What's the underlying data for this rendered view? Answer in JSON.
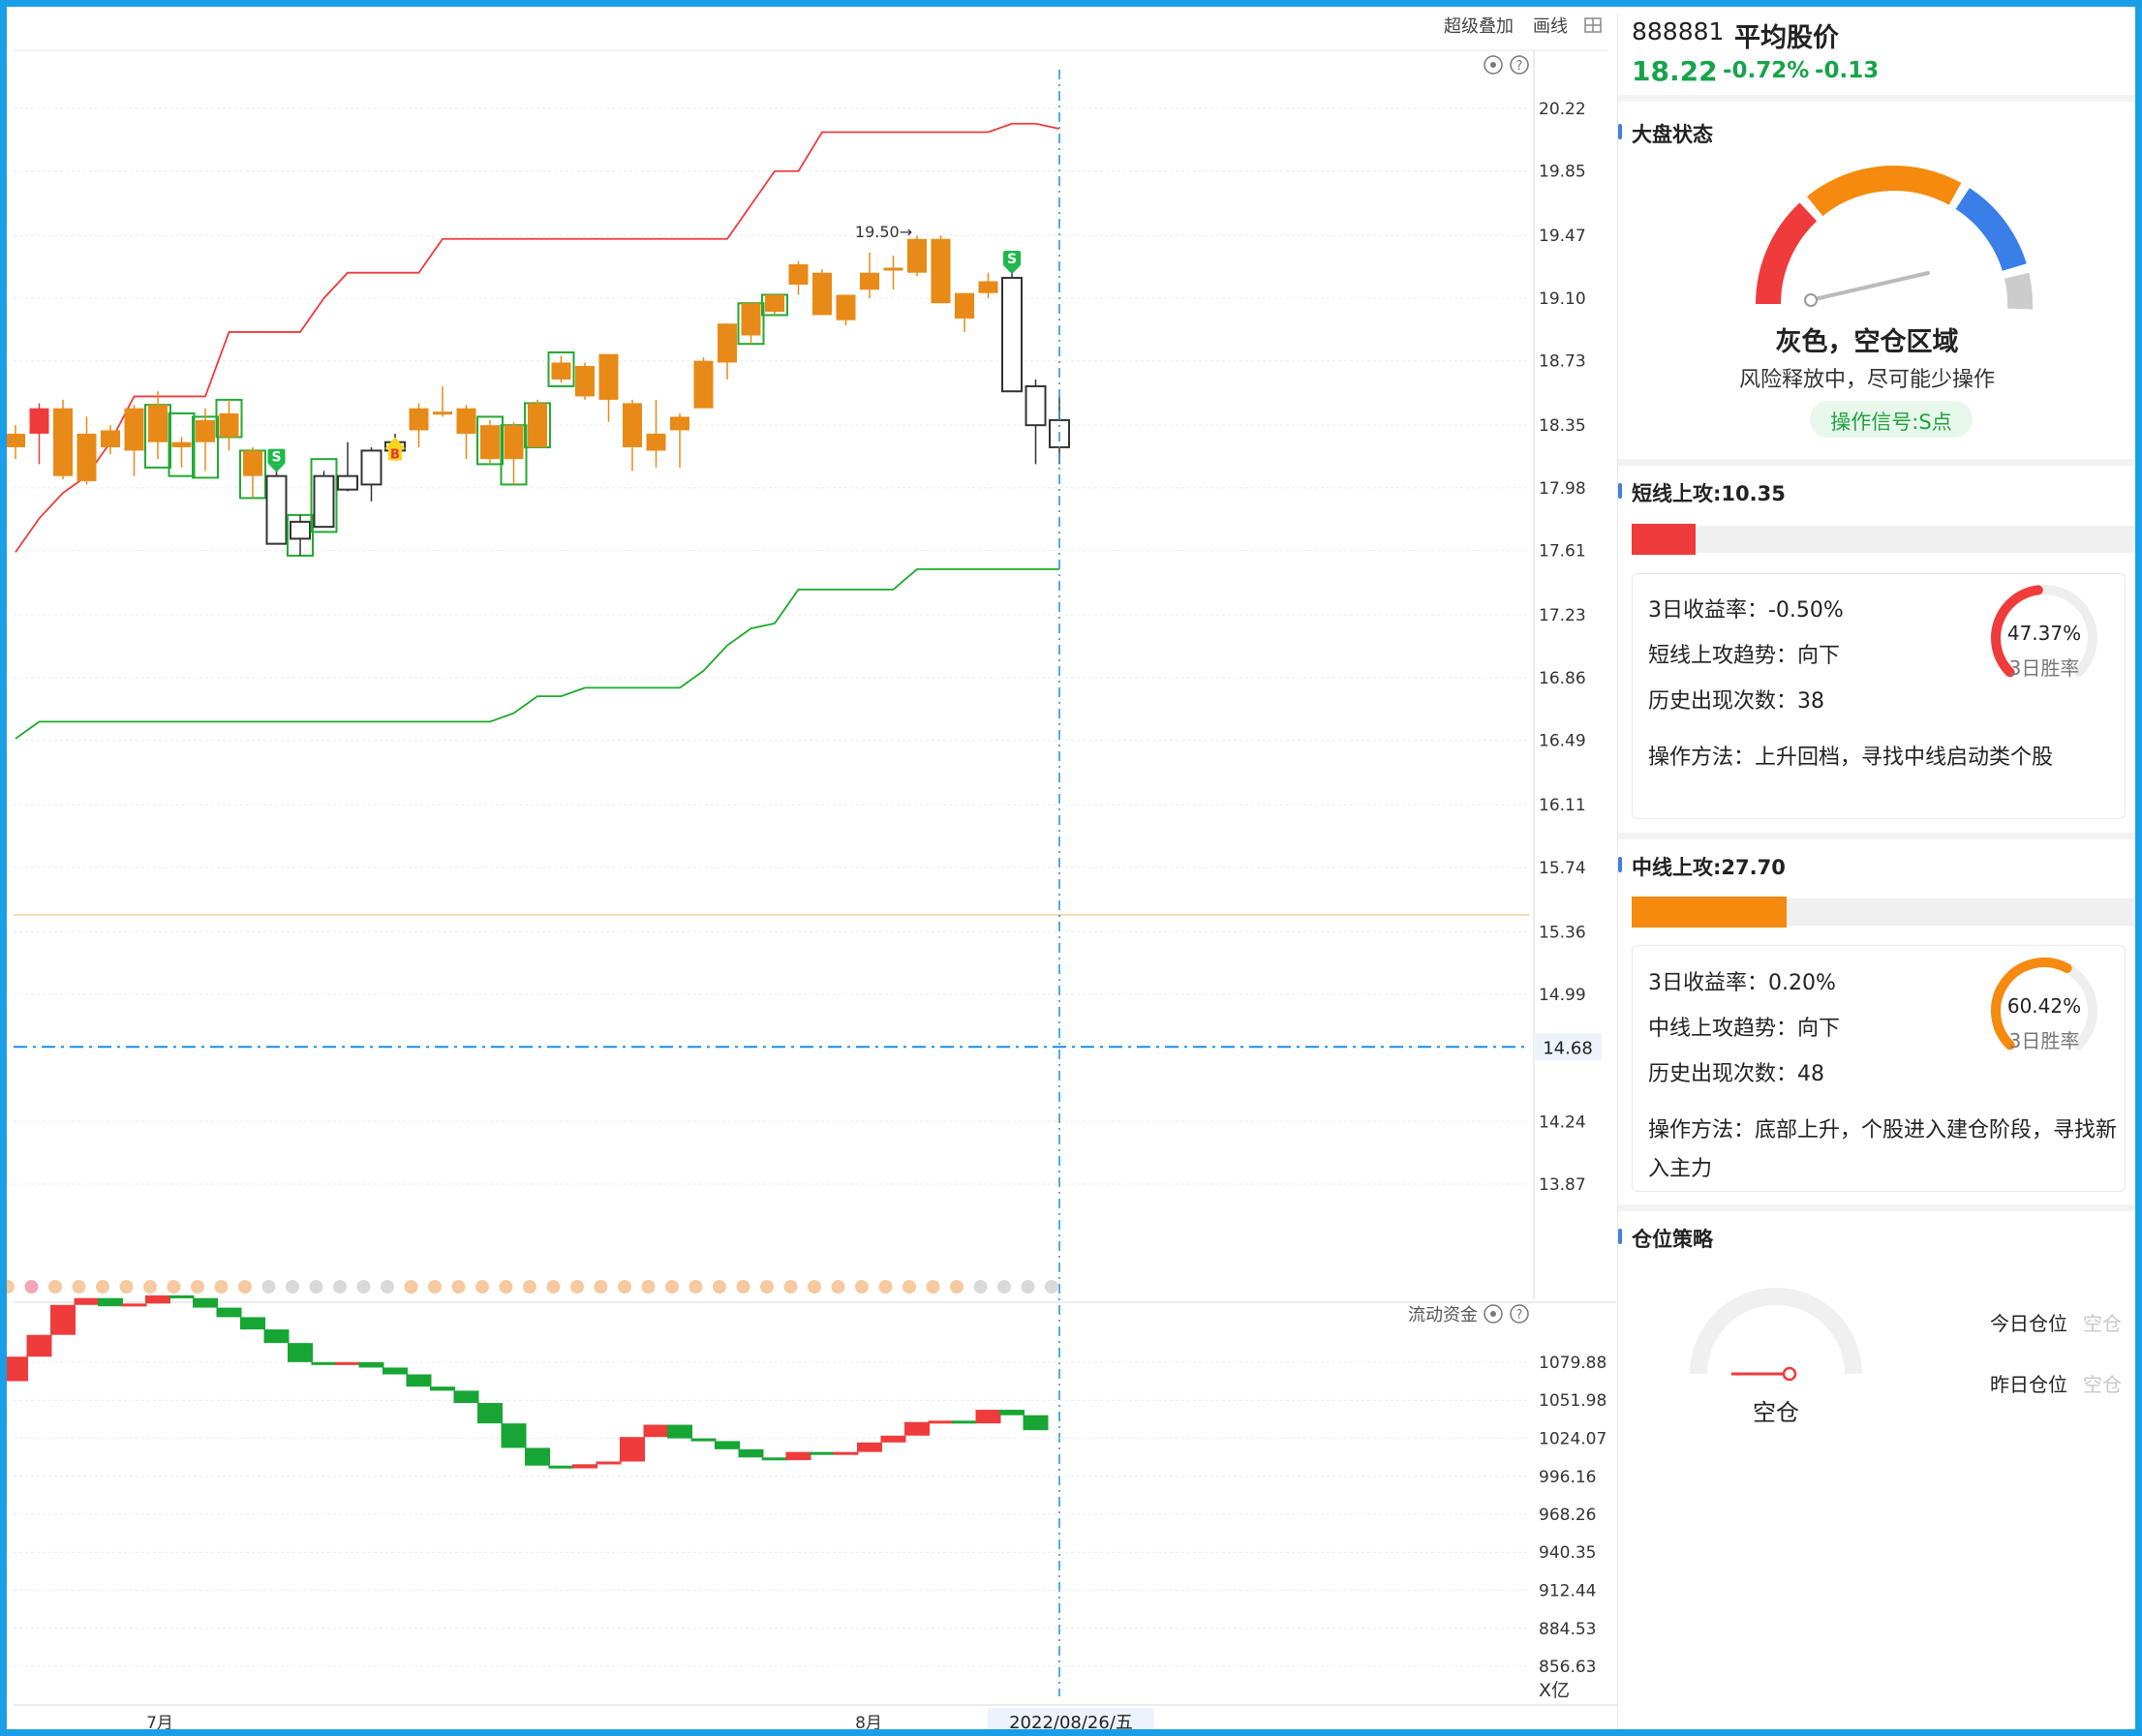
{
  "toolbar": {
    "overlay": "超级叠加",
    "draw": "画线",
    "grid_icon": "grid-icon"
  },
  "icons": {
    "settings": "settings-icon",
    "help": "help-icon"
  },
  "stock": {
    "code": "888881",
    "name": "平均股价",
    "price": "18.22",
    "pct": "-0.72%",
    "chg": "-0.13"
  },
  "market": {
    "title": "大盘状态",
    "state": "灰色，空仓区域",
    "desc": "风险释放中，尽可能少操作",
    "signal": "操作信号:S点",
    "gauge_colors": [
      "#ef3b3b",
      "#f58a0e",
      "#3a7ee8",
      "#cccccc"
    ]
  },
  "short": {
    "title": "短线上攻:10.35",
    "bar_level": 0.1,
    "bar_color": "#ef3b3b",
    "line1": "3日收益率：-0.50%",
    "line2": "短线上攻趋势：向下",
    "line3": "历史出现次数：38",
    "method": "操作方法：上升回档，寻找中线启动类个股",
    "win": "47.37%",
    "win_label": "3日胜率",
    "win_level": 0.4737
  },
  "mid": {
    "title": "中线上攻:27.70",
    "bar_level": 0.28,
    "bar_color": "#f58a0e",
    "line1": "3日收益率：0.20%",
    "line2": "中线上攻趋势：向下",
    "line3": "历史出现次数：48",
    "method1": "操作方法：底部上升，个股进入建仓阶段，寻找新",
    "method2": "入主力",
    "win": "60.42%",
    "win_label": "3日胜率",
    "win_level": 0.6042
  },
  "position": {
    "title": "仓位策略",
    "label": "空仓",
    "today_label": "今日仓位",
    "today_val": "空仓",
    "yest_label": "昨日仓位",
    "yest_val": "空仓"
  },
  "chart_data": [
    {
      "type": "candlestick",
      "yticks": [
        "20.22",
        "19.85",
        "19.47",
        "19.10",
        "18.73",
        "18.35",
        "17.98",
        "17.61",
        "17.23",
        "16.86",
        "16.49",
        "16.11",
        "15.74",
        "15.36",
        "14.99",
        "14.24",
        "13.87"
      ],
      "ylim": [
        13.6,
        20.5
      ],
      "price_line": "14.68",
      "xticks": [
        "7月",
        "8月"
      ],
      "date_label": "2022/08/26/五",
      "annotation": "19.50→",
      "colors": {
        "up": "#ef3b3b",
        "down": "#e88a17",
        "hollow": "#333333",
        "box": "#22aa33",
        "upper": "#ef3b3b",
        "lower": "#1aaa2a",
        "ref": "#f7d9b0",
        "price": "#1a8fe8"
      },
      "candles": [
        {
          "o": 18.3,
          "c": 18.22,
          "h": 18.35,
          "l": 18.15,
          "t": "d"
        },
        {
          "o": 18.45,
          "c": 18.3,
          "h": 18.48,
          "l": 18.12,
          "t": "u"
        },
        {
          "o": 18.45,
          "c": 18.05,
          "h": 18.5,
          "l": 18.03,
          "t": "d"
        },
        {
          "o": 18.3,
          "c": 18.02,
          "h": 18.4,
          "l": 18.0,
          "t": "d"
        },
        {
          "o": 18.32,
          "c": 18.22,
          "h": 18.35,
          "l": 18.18,
          "t": "d"
        },
        {
          "o": 18.45,
          "c": 18.2,
          "h": 18.47,
          "l": 18.05,
          "t": "d"
        },
        {
          "o": 18.47,
          "c": 18.25,
          "h": 18.55,
          "l": 18.15,
          "t": "d",
          "box": [
            18.47,
            18.1
          ]
        },
        {
          "o": 18.25,
          "c": 18.22,
          "h": 18.28,
          "l": 18.1,
          "t": "d",
          "box": [
            18.42,
            18.05
          ]
        },
        {
          "o": 18.38,
          "c": 18.25,
          "h": 18.45,
          "l": 18.08,
          "t": "d",
          "box": [
            18.4,
            18.04
          ]
        },
        {
          "o": 18.42,
          "c": 18.28,
          "h": 18.5,
          "l": 18.2,
          "t": "d",
          "box": [
            18.5,
            18.28
          ]
        },
        {
          "o": 18.2,
          "c": 18.05,
          "h": 18.22,
          "l": 17.92,
          "t": "d",
          "box": [
            18.2,
            17.92
          ]
        },
        {
          "o": 18.05,
          "c": 17.65,
          "h": 18.08,
          "l": 17.65,
          "t": "h",
          "sig": "S"
        },
        {
          "o": 17.78,
          "c": 17.68,
          "h": 17.82,
          "l": 17.58,
          "t": "h",
          "box": [
            17.82,
            17.58
          ]
        },
        {
          "o": 17.75,
          "c": 18.05,
          "h": 18.08,
          "l": 17.75,
          "t": "h",
          "box": [
            18.15,
            17.72
          ]
        },
        {
          "o": 17.97,
          "c": 18.05,
          "h": 18.25,
          "l": 17.96,
          "t": "h"
        },
        {
          "o": 18.0,
          "c": 18.2,
          "h": 18.22,
          "l": 17.9,
          "t": "h"
        },
        {
          "o": 18.2,
          "c": 18.25,
          "h": 18.3,
          "l": 18.15,
          "t": "h",
          "sig": "B"
        },
        {
          "o": 18.45,
          "c": 18.32,
          "h": 18.48,
          "l": 18.22,
          "t": "d"
        },
        {
          "o": 18.43,
          "c": 18.42,
          "h": 18.58,
          "l": 18.4,
          "t": "d"
        },
        {
          "o": 18.45,
          "c": 18.3,
          "h": 18.47,
          "l": 18.15,
          "t": "d"
        },
        {
          "o": 18.35,
          "c": 18.15,
          "h": 18.38,
          "l": 18.12,
          "t": "d",
          "box": [
            18.4,
            18.12
          ]
        },
        {
          "o": 18.35,
          "c": 18.15,
          "h": 18.37,
          "l": 18.0,
          "t": "d",
          "box": [
            18.35,
            18.0
          ]
        },
        {
          "o": 18.48,
          "c": 18.22,
          "h": 18.5,
          "l": 18.22,
          "t": "d",
          "box": [
            18.48,
            18.22
          ]
        },
        {
          "o": 18.72,
          "c": 18.62,
          "h": 18.76,
          "l": 18.6,
          "t": "d",
          "box": [
            18.78,
            18.58
          ]
        },
        {
          "o": 18.7,
          "c": 18.52,
          "h": 18.72,
          "l": 18.5,
          "t": "d"
        },
        {
          "o": 18.77,
          "c": 18.5,
          "h": 18.77,
          "l": 18.37,
          "t": "d"
        },
        {
          "o": 18.48,
          "c": 18.22,
          "h": 18.5,
          "l": 18.08,
          "t": "d"
        },
        {
          "o": 18.3,
          "c": 18.2,
          "h": 18.5,
          "l": 18.1,
          "t": "d"
        },
        {
          "o": 18.4,
          "c": 18.32,
          "h": 18.42,
          "l": 18.1,
          "t": "d"
        },
        {
          "o": 18.73,
          "c": 18.45,
          "h": 18.75,
          "l": 18.45,
          "t": "d"
        },
        {
          "o": 18.95,
          "c": 18.72,
          "h": 18.95,
          "l": 18.62,
          "t": "d"
        },
        {
          "o": 19.07,
          "c": 18.88,
          "h": 19.07,
          "l": 18.83,
          "t": "d",
          "box": [
            19.07,
            18.83
          ]
        },
        {
          "o": 19.12,
          "c": 19.02,
          "h": 19.12,
          "l": 19.0,
          "t": "d",
          "box": [
            19.12,
            19.0
          ]
        },
        {
          "o": 19.3,
          "c": 19.18,
          "h": 19.32,
          "l": 19.12,
          "t": "d"
        },
        {
          "o": 19.25,
          "c": 19.0,
          "h": 19.27,
          "l": 19.0,
          "t": "d"
        },
        {
          "o": 19.12,
          "c": 18.97,
          "h": 19.12,
          "l": 18.94,
          "t": "d"
        },
        {
          "o": 19.25,
          "c": 19.15,
          "h": 19.37,
          "l": 19.1,
          "t": "d"
        },
        {
          "o": 19.28,
          "c": 19.27,
          "h": 19.35,
          "l": 19.15,
          "t": "d"
        },
        {
          "o": 19.45,
          "c": 19.25,
          "h": 19.47,
          "l": 19.23,
          "t": "d"
        },
        {
          "o": 19.45,
          "c": 19.07,
          "h": 19.47,
          "l": 19.07,
          "t": "d"
        },
        {
          "o": 19.13,
          "c": 18.98,
          "h": 19.13,
          "l": 18.9,
          "t": "d"
        },
        {
          "o": 19.2,
          "c": 19.13,
          "h": 19.25,
          "l": 19.1,
          "t": "d"
        },
        {
          "o": 19.22,
          "c": 18.55,
          "h": 19.25,
          "l": 18.55,
          "t": "h",
          "sig": "S"
        },
        {
          "o": 18.58,
          "c": 18.35,
          "h": 18.62,
          "l": 18.12,
          "t": "h"
        },
        {
          "o": 18.38,
          "c": 18.22,
          "h": 18.52,
          "l": 18.12,
          "t": "h"
        }
      ],
      "upper_band": [
        17.6,
        17.8,
        17.95,
        18.05,
        18.25,
        18.52,
        18.52,
        18.52,
        18.52,
        18.9,
        18.9,
        18.9,
        18.9,
        19.1,
        19.25,
        19.25,
        19.25,
        19.25,
        19.45,
        19.45,
        19.45,
        19.45,
        19.45,
        19.45,
        19.45,
        19.45,
        19.45,
        19.45,
        19.45,
        19.45,
        19.45,
        19.65,
        19.85,
        19.85,
        20.08,
        20.08,
        20.08,
        20.08,
        20.08,
        20.08,
        20.08,
        20.08,
        20.13,
        20.13,
        20.1
      ],
      "lower_band": [
        16.5,
        16.6,
        16.6,
        16.6,
        16.6,
        16.6,
        16.6,
        16.6,
        16.6,
        16.6,
        16.6,
        16.6,
        16.6,
        16.6,
        16.6,
        16.6,
        16.6,
        16.6,
        16.6,
        16.6,
        16.6,
        16.65,
        16.75,
        16.75,
        16.8,
        16.8,
        16.8,
        16.8,
        16.8,
        16.9,
        17.05,
        17.15,
        17.18,
        17.38,
        17.38,
        17.38,
        17.38,
        17.38,
        17.5,
        17.5,
        17.5,
        17.5,
        17.5,
        17.5,
        17.5
      ],
      "ref_line": 15.46,
      "status_dots": [
        "#f7c9a0",
        "#f3a6b3",
        "#f7c9a0",
        "#f7c9a0",
        "#f7c9a0",
        "#f7c9a0",
        "#f7c9a0",
        "#f7c9a0",
        "#f7c9a0",
        "#f7c9a0",
        "#f7c9a0",
        "#d9d9d9",
        "#d9d9d9",
        "#d9d9d9",
        "#d9d9d9",
        "#d9d9d9",
        "#d9d9d9",
        "#f7c9a0",
        "#f7c9a0",
        "#f7c9a0",
        "#f7c9a0",
        "#f7c9a0",
        "#f7c9a0",
        "#f7c9a0",
        "#f7c9a0",
        "#f7c9a0",
        "#f7c9a0",
        "#f7c9a0",
        "#f7c9a0",
        "#f7c9a0",
        "#f7c9a0",
        "#f7c9a0",
        "#f7c9a0",
        "#f7c9a0",
        "#f7c9a0",
        "#f7c9a0",
        "#f7c9a0",
        "#f7c9a0",
        "#f7c9a0",
        "#f7c9a0",
        "#f7c9a0",
        "#d9d9d9",
        "#d9d9d9",
        "#d9d9d9",
        "#d9d9d9"
      ]
    },
    {
      "type": "bar",
      "title": "流动资金",
      "unit": "X亿",
      "yticks": [
        "1079.88",
        "1051.98",
        "1024.07",
        "996.16",
        "968.26",
        "940.35",
        "912.44",
        "884.53",
        "856.63"
      ],
      "ylim": [
        850,
        1115
      ],
      "flows": [
        {
          "a": 1066,
          "b": 1084,
          "t": "u"
        },
        {
          "a": 1084,
          "b": 1100,
          "t": "u"
        },
        {
          "a": 1100,
          "b": 1122,
          "t": "u"
        },
        {
          "a": 1122,
          "b": 1127,
          "t": "u"
        },
        {
          "a": 1127,
          "b": 1121,
          "t": "d"
        },
        {
          "a": 1121,
          "b": 1123,
          "t": "u"
        },
        {
          "a": 1123,
          "b": 1129,
          "t": "u"
        },
        {
          "a": 1129,
          "b": 1127,
          "t": "d"
        },
        {
          "a": 1127,
          "b": 1120,
          "t": "d"
        },
        {
          "a": 1120,
          "b": 1113,
          "t": "d"
        },
        {
          "a": 1113,
          "b": 1104,
          "t": "d"
        },
        {
          "a": 1104,
          "b": 1094,
          "t": "d"
        },
        {
          "a": 1094,
          "b": 1080,
          "t": "d"
        },
        {
          "a": 1080,
          "b": 1078,
          "t": "d"
        },
        {
          "a": 1078,
          "b": 1080,
          "t": "u"
        },
        {
          "a": 1080,
          "b": 1076,
          "t": "d"
        },
        {
          "a": 1076,
          "b": 1071,
          "t": "d"
        },
        {
          "a": 1071,
          "b": 1062,
          "t": "d"
        },
        {
          "a": 1062,
          "b": 1059,
          "t": "d"
        },
        {
          "a": 1059,
          "b": 1050,
          "t": "d"
        },
        {
          "a": 1050,
          "b": 1035,
          "t": "d"
        },
        {
          "a": 1035,
          "b": 1017,
          "t": "d"
        },
        {
          "a": 1017,
          "b": 1004,
          "t": "d"
        },
        {
          "a": 1004,
          "b": 1002,
          "t": "d"
        },
        {
          "a": 1002,
          "b": 1005,
          "t": "u"
        },
        {
          "a": 1005,
          "b": 1007,
          "t": "u"
        },
        {
          "a": 1007,
          "b": 1025,
          "t": "u"
        },
        {
          "a": 1025,
          "b": 1034,
          "t": "u"
        },
        {
          "a": 1034,
          "b": 1024,
          "t": "d"
        },
        {
          "a": 1024,
          "b": 1022,
          "t": "d"
        },
        {
          "a": 1022,
          "b": 1016,
          "t": "d"
        },
        {
          "a": 1016,
          "b": 1010,
          "t": "d"
        },
        {
          "a": 1010,
          "b": 1008,
          "t": "d"
        },
        {
          "a": 1008,
          "b": 1014,
          "t": "u"
        },
        {
          "a": 1014,
          "b": 1012,
          "t": "d"
        },
        {
          "a": 1012,
          "b": 1014,
          "t": "u"
        },
        {
          "a": 1014,
          "b": 1021,
          "t": "u"
        },
        {
          "a": 1021,
          "b": 1026,
          "t": "u"
        },
        {
          "a": 1026,
          "b": 1036,
          "t": "u"
        },
        {
          "a": 1036,
          "b": 1037,
          "t": "u"
        },
        {
          "a": 1037,
          "b": 1035,
          "t": "d"
        },
        {
          "a": 1035,
          "b": 1045,
          "t": "u"
        },
        {
          "a": 1045,
          "b": 1041,
          "t": "d"
        },
        {
          "a": 1041,
          "b": 1030,
          "t": "d"
        }
      ]
    }
  ]
}
